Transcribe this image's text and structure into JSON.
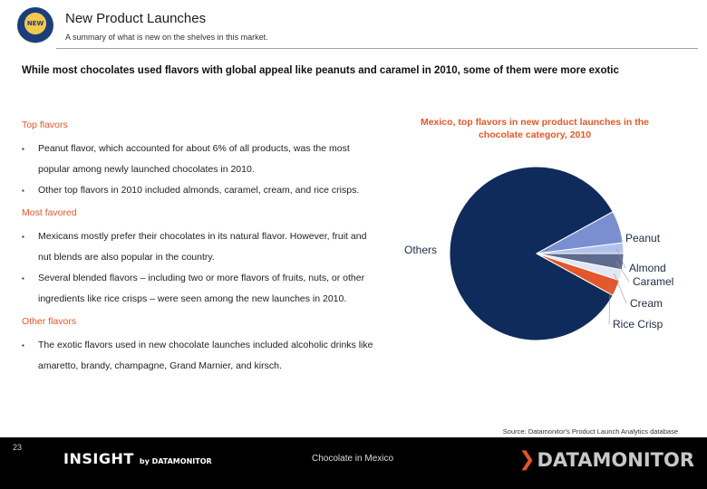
{
  "header": {
    "logo_text": "NEW",
    "title": "New Product Launches",
    "subtitle": "A summary of what is new on the shelves in this market."
  },
  "headline": "While most chocolates used flavors with global appeal like peanuts and caramel in 2010, some of them were more exotic",
  "sections": [
    {
      "heading": "Top flavors",
      "bullets": [
        "Peanut flavor, which accounted for about 6% of all products, was the most popular among newly launched chocolates in 2010.",
        "Other top flavors in 2010 included almonds, caramel, cream, and rice crisps."
      ]
    },
    {
      "heading": "Most favored",
      "bullets": [
        "Mexicans mostly prefer their chocolates in its natural flavor. However, fruit and nut blends are also popular in the country.",
        "Several blended flavors – including two or more flavors of fruits, nuts, or other ingredients like rice crisps – were seen among the new launches in 2010."
      ]
    },
    {
      "heading": "Other flavors",
      "bullets": [
        "The exotic flavors used in new chocolate launches included alcoholic drinks like amaretto, brandy, champagne, Grand Marnier, and kirsch."
      ]
    }
  ],
  "chart_data": {
    "type": "pie",
    "title": "Mexico, top flavors in new product launches in the chocolate category, 2010",
    "categories": [
      "Others",
      "Peanut",
      "Almond",
      "Caramel",
      "Cream",
      "Rice Crisp"
    ],
    "values": [
      84,
      6,
      2,
      3,
      2,
      3
    ],
    "colors": [
      "#0f2b5b",
      "#7a8fcf",
      "#b3c2ea",
      "#5e6b8e",
      "#e3e7f3",
      "#e2572b"
    ]
  },
  "source": "Source: Datamonitor's Product Launch Analytics database",
  "footer": {
    "page_number": "23",
    "insight": "INSIGHT",
    "insight_by": "by DATAMONITOR",
    "center_text": "Chocolate in Mexico",
    "brand": "DATAMONITOR",
    "brand_mark": "❯"
  },
  "colors": {
    "accent": "#e2572b",
    "navy": "#0f2b5b",
    "footer_bg": "#000000"
  }
}
